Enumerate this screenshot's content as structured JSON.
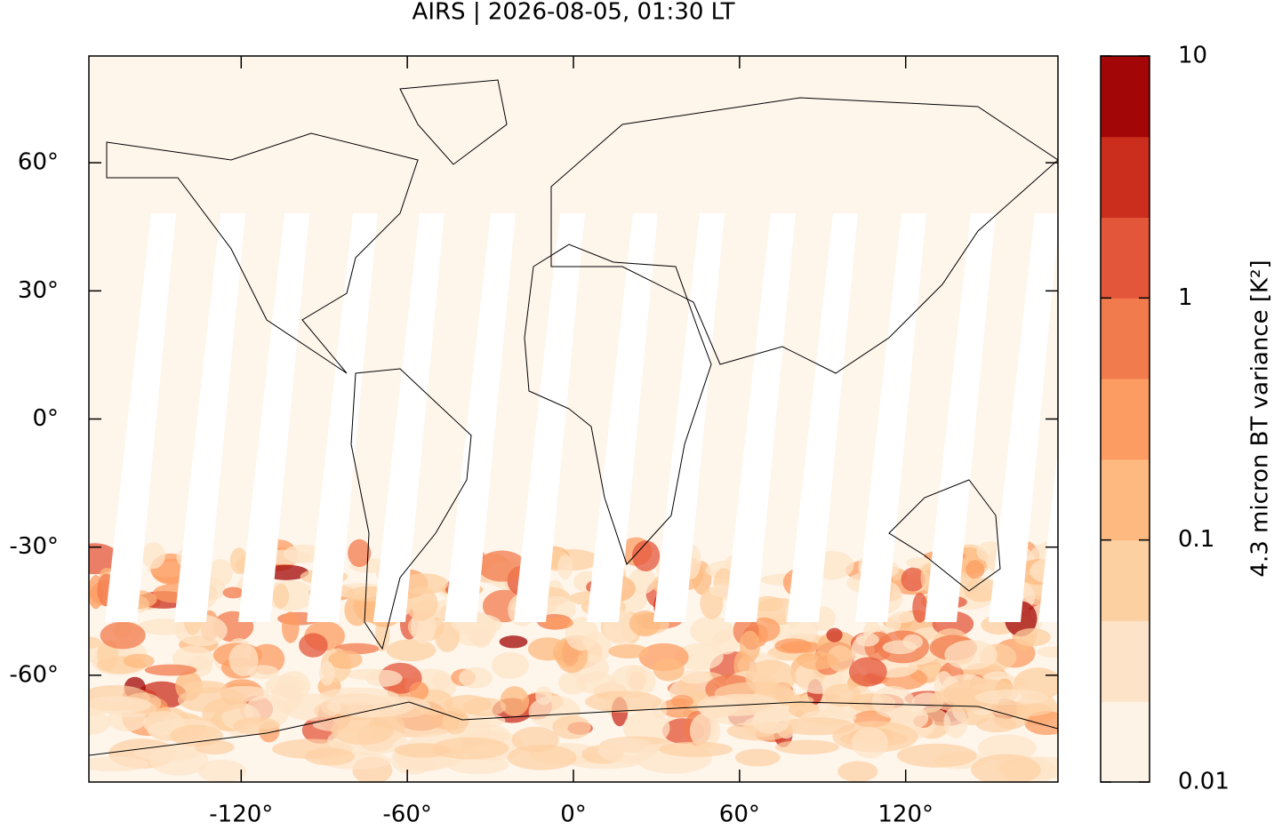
{
  "chart_data": {
    "type": "map",
    "title": "AIRS | 2026-08-05, 01:30 LT",
    "xlim": [
      -175,
      175
    ],
    "ylim": [
      -85,
      85
    ],
    "xticks": [
      {
        "value": -120,
        "label": "-120°"
      },
      {
        "value": -60,
        "label": "-60°"
      },
      {
        "value": 0,
        "label": "0°"
      },
      {
        "value": 60,
        "label": "60°"
      },
      {
        "value": 120,
        "label": "120°"
      }
    ],
    "yticks": [
      {
        "value": -60,
        "label": "-60°"
      },
      {
        "value": -30,
        "label": "-30°"
      },
      {
        "value": 0,
        "label": "0°"
      },
      {
        "value": 30,
        "label": "30°"
      },
      {
        "value": 60,
        "label": "60°"
      }
    ],
    "colorbar": {
      "label": "4.3 micron BT variance [K²]",
      "log": true,
      "lim": [
        0.01,
        10
      ],
      "ticks": [
        0.01,
        0.1,
        1,
        10
      ],
      "colors": [
        "#fdf3e6",
        "#fde4c8",
        "#fdd0a2",
        "#fdb97f",
        "#fc9c62",
        "#f27b4d",
        "#e4563a",
        "#cb2e1d",
        "#a20606"
      ]
    }
  }
}
